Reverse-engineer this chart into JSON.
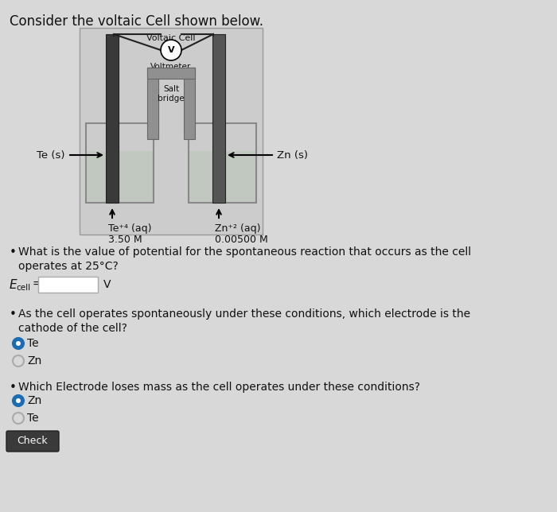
{
  "title": "Consider the voltaic Cell shown below.",
  "voltaic_cell_label": "Voltaic Cell",
  "voltmeter_label": "Voltmeter",
  "te_label": "Te (s)",
  "zn_label": "Zn (s)",
  "te_sol1": "Te⁺⁴ (aq)",
  "te_sol2": "3.50 M",
  "zn_sol1": "Zn⁺² (aq)",
  "zn_sol2": "0.00500 M",
  "q1": "What is the value of potential for the spontaneous reaction that occurs as the cell\noperates at 25°C?",
  "q2": "As the cell operates spontaneously under these conditions, which electrode is the\ncathode of the cell?",
  "q3": "Which Electrode loses mass as the cell operates under these conditions?",
  "check_label": "Check",
  "bg_color": "#d8d8d8",
  "cell_bg": "#c8c8c8",
  "beaker_fill": "#c0c8c0",
  "salt_bridge_fill": "#888888",
  "electrode_dark": "#3a3a3a",
  "electrode_mid": "#555555",
  "wire_color": "#222222",
  "text_color": "#111111",
  "selected_radio": "#1a6db5",
  "unselected_radio": "#aaaaaa",
  "check_btn_color": "#3a3a3a",
  "input_box_color": "#ffffff"
}
